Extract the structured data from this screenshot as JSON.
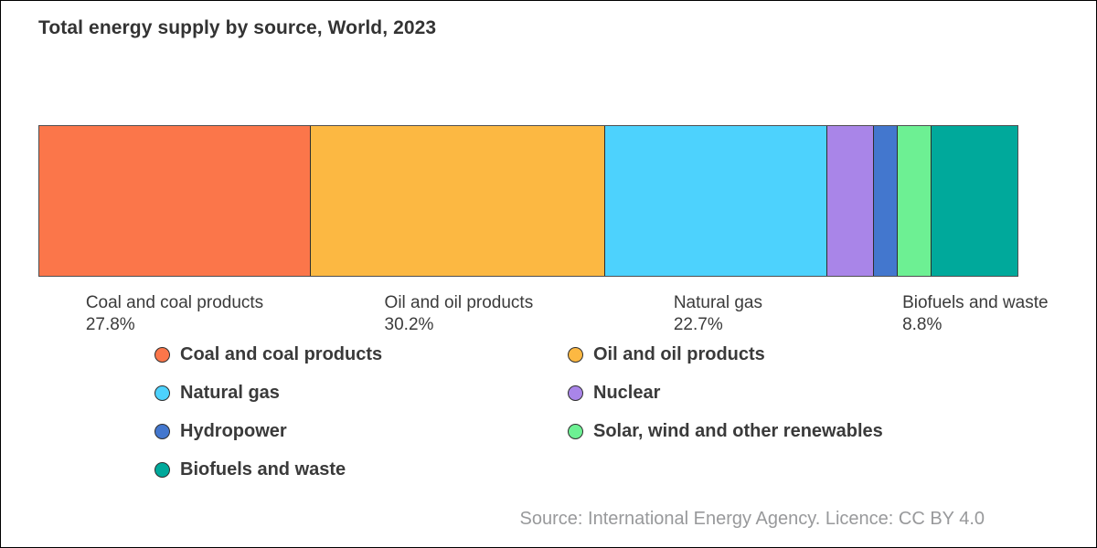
{
  "title": "Total energy supply by source, World, 2023",
  "source_line": "Source: International Energy Agency. Licence: CC BY 4.0",
  "chart_data": {
    "type": "bar",
    "subtype": "stacked-horizontal-percentage",
    "title": "Total energy supply by source, World, 2023",
    "unit": "%",
    "xlim": [
      0,
      100
    ],
    "legend_position": "bottom",
    "grid": false,
    "series": [
      {
        "name": "Coal and coal products",
        "value": 27.8,
        "label": "27.8%",
        "color": "#fb764a"
      },
      {
        "name": "Oil and oil products",
        "value": 30.2,
        "label": "30.2%",
        "color": "#fcb842"
      },
      {
        "name": "Natural gas",
        "value": 22.7,
        "label": "22.7%",
        "color": "#4dd2fd"
      },
      {
        "name": "Nuclear",
        "value": 4.7,
        "color": "#a985e8"
      },
      {
        "name": "Hydropower",
        "value": 2.4,
        "color": "#4377ce"
      },
      {
        "name": "Solar, wind and other renewables",
        "value": 3.4,
        "color": "#6df093"
      },
      {
        "name": "Biofuels and waste",
        "value": 8.8,
        "label": "8.8%",
        "color": "#00a99b"
      }
    ],
    "legend_columns": [
      [
        "Coal and coal products",
        "Natural gas",
        "Hydropower",
        "Biofuels and waste"
      ],
      [
        "Oil and oil products",
        "Nuclear",
        "Solar, wind and other renewables"
      ]
    ]
  }
}
